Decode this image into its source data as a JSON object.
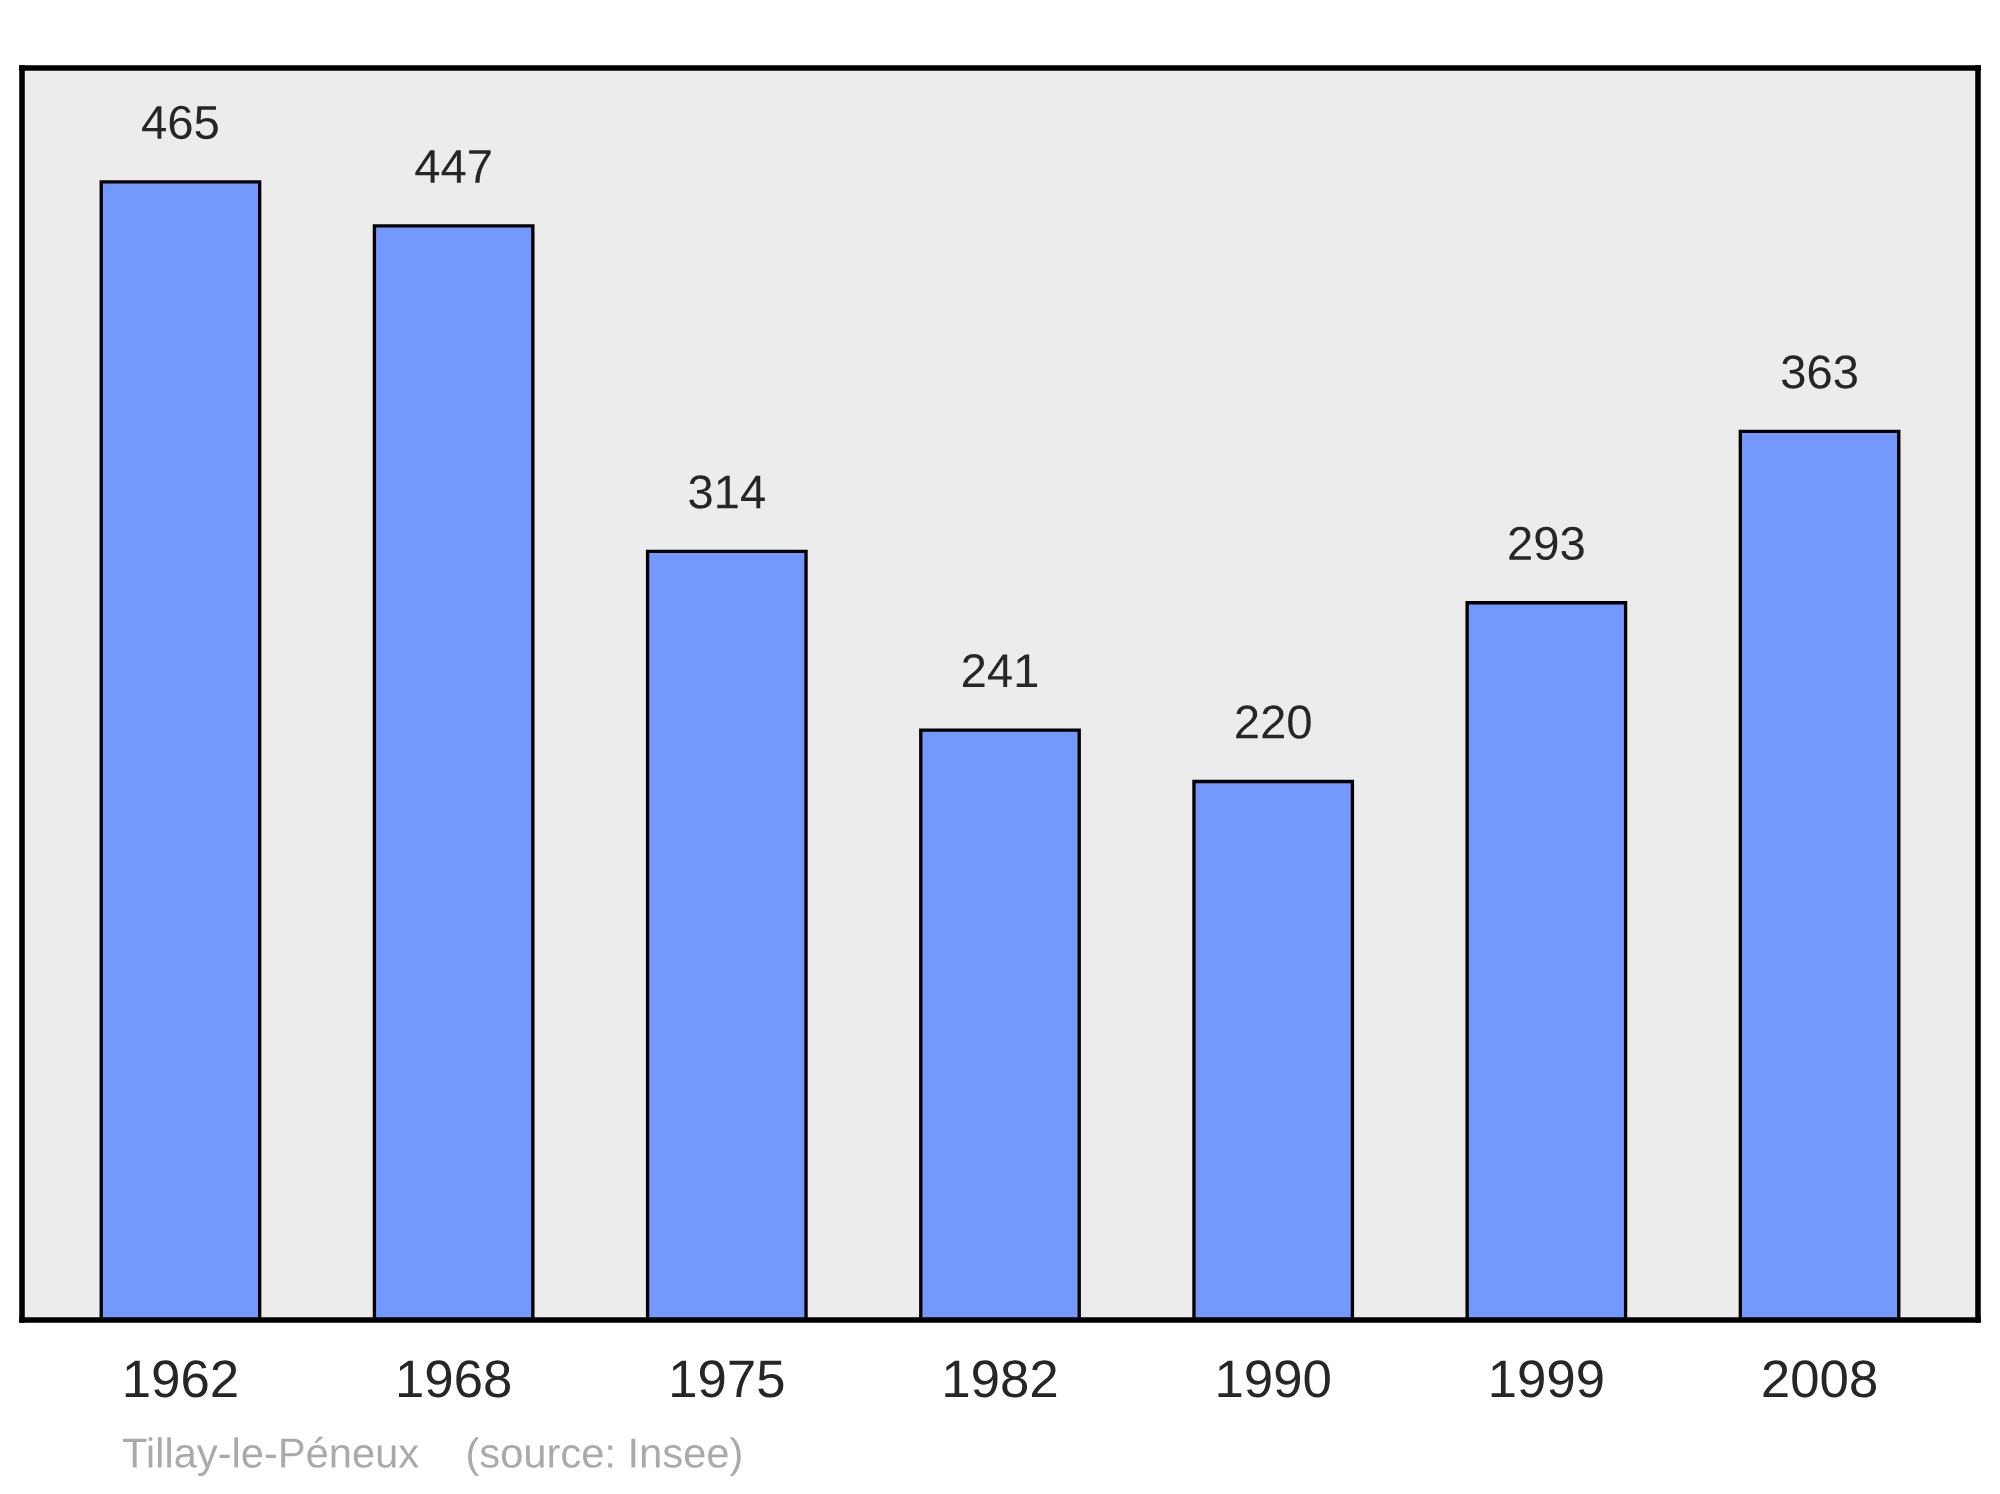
{
  "chart_data": {
    "type": "bar",
    "categories": [
      "1962",
      "1968",
      "1975",
      "1982",
      "1990",
      "1999",
      "2008"
    ],
    "values": [
      465,
      447,
      314,
      241,
      220,
      293,
      363
    ],
    "color": "#7399ff",
    "data_labels": true,
    "grid": false,
    "annotations": [
      "Tillay-le-Péneux    (source: Insee)"
    ]
  }
}
